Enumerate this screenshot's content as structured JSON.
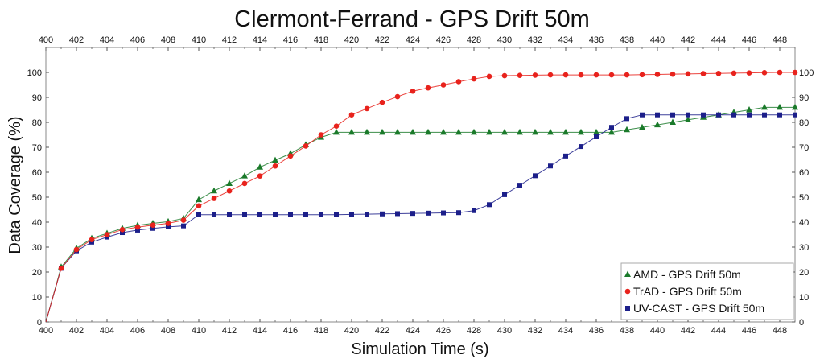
{
  "chart_data": {
    "type": "line",
    "title": "Clermont-Ferrand - GPS Drift 50m",
    "xlabel": "Simulation Time (s)",
    "ylabel": "Data Coverage (%)",
    "xlim": [
      400,
      449
    ],
    "ylim": [
      0,
      110
    ],
    "x_ticks": [
      400,
      402,
      404,
      406,
      408,
      410,
      412,
      414,
      416,
      418,
      420,
      422,
      424,
      426,
      428,
      430,
      432,
      434,
      436,
      438,
      440,
      442,
      444,
      446,
      448
    ],
    "y_ticks": [
      0,
      10,
      20,
      30,
      40,
      50,
      60,
      70,
      80,
      90,
      100
    ],
    "grid": false,
    "legend_position": "bottom-right",
    "x": [
      400,
      401,
      402,
      403,
      404,
      405,
      406,
      407,
      408,
      409,
      410,
      411,
      412,
      413,
      414,
      415,
      416,
      417,
      418,
      419,
      420,
      421,
      422,
      423,
      424,
      425,
      426,
      427,
      428,
      429,
      430,
      431,
      432,
      433,
      434,
      435,
      436,
      437,
      438,
      439,
      440,
      441,
      442,
      443,
      444,
      445,
      446,
      447,
      448,
      449
    ],
    "series": [
      {
        "name": "AMD - GPS Drift 50m",
        "color": "#1a7a2a",
        "marker": "triangle",
        "values": [
          0,
          22,
          29.5,
          33.5,
          35.5,
          37.5,
          38.7,
          39.5,
          40.2,
          41.5,
          49,
          52.5,
          55.5,
          58.5,
          62,
          64.8,
          67.5,
          71,
          74,
          76,
          76,
          76,
          76,
          76,
          76,
          76,
          76,
          76,
          76,
          76,
          76,
          76,
          76,
          76,
          76,
          76,
          76,
          76,
          77,
          78,
          79,
          80,
          81,
          82,
          83,
          84,
          85,
          86,
          86,
          86
        ]
      },
      {
        "name": "TrAD - GPS Drift 50m",
        "color": "#e8221c",
        "marker": "circle",
        "values": [
          0,
          21.5,
          29,
          33,
          35,
          37,
          38,
          38.8,
          39.5,
          40.8,
          46.5,
          49.5,
          52.5,
          55.5,
          58.5,
          62.5,
          66.5,
          70.5,
          75,
          78.5,
          83,
          85.5,
          88,
          90.3,
          92.5,
          93.8,
          95,
          96.3,
          97.4,
          98.4,
          98.7,
          98.8,
          98.9,
          99,
          99,
          99,
          99,
          99,
          99,
          99.1,
          99.2,
          99.3,
          99.4,
          99.5,
          99.6,
          99.7,
          99.8,
          99.9,
          100,
          100
        ]
      },
      {
        "name": "UV-CAST - GPS Drift 50m",
        "color": "#1c1f8a",
        "marker": "square",
        "values": [
          0,
          21.5,
          28.5,
          32,
          34,
          35.8,
          36.8,
          37.5,
          38.1,
          38.5,
          43,
          43,
          43,
          43,
          43,
          43,
          43,
          43,
          43,
          43,
          43.1,
          43.2,
          43.3,
          43.4,
          43.5,
          43.6,
          43.7,
          43.8,
          44.6,
          47,
          51,
          54.8,
          58.6,
          62.5,
          66.5,
          70.3,
          74.2,
          78,
          81.5,
          83,
          83,
          83,
          83,
          83,
          83,
          83,
          83,
          83,
          83,
          83
        ]
      }
    ]
  }
}
